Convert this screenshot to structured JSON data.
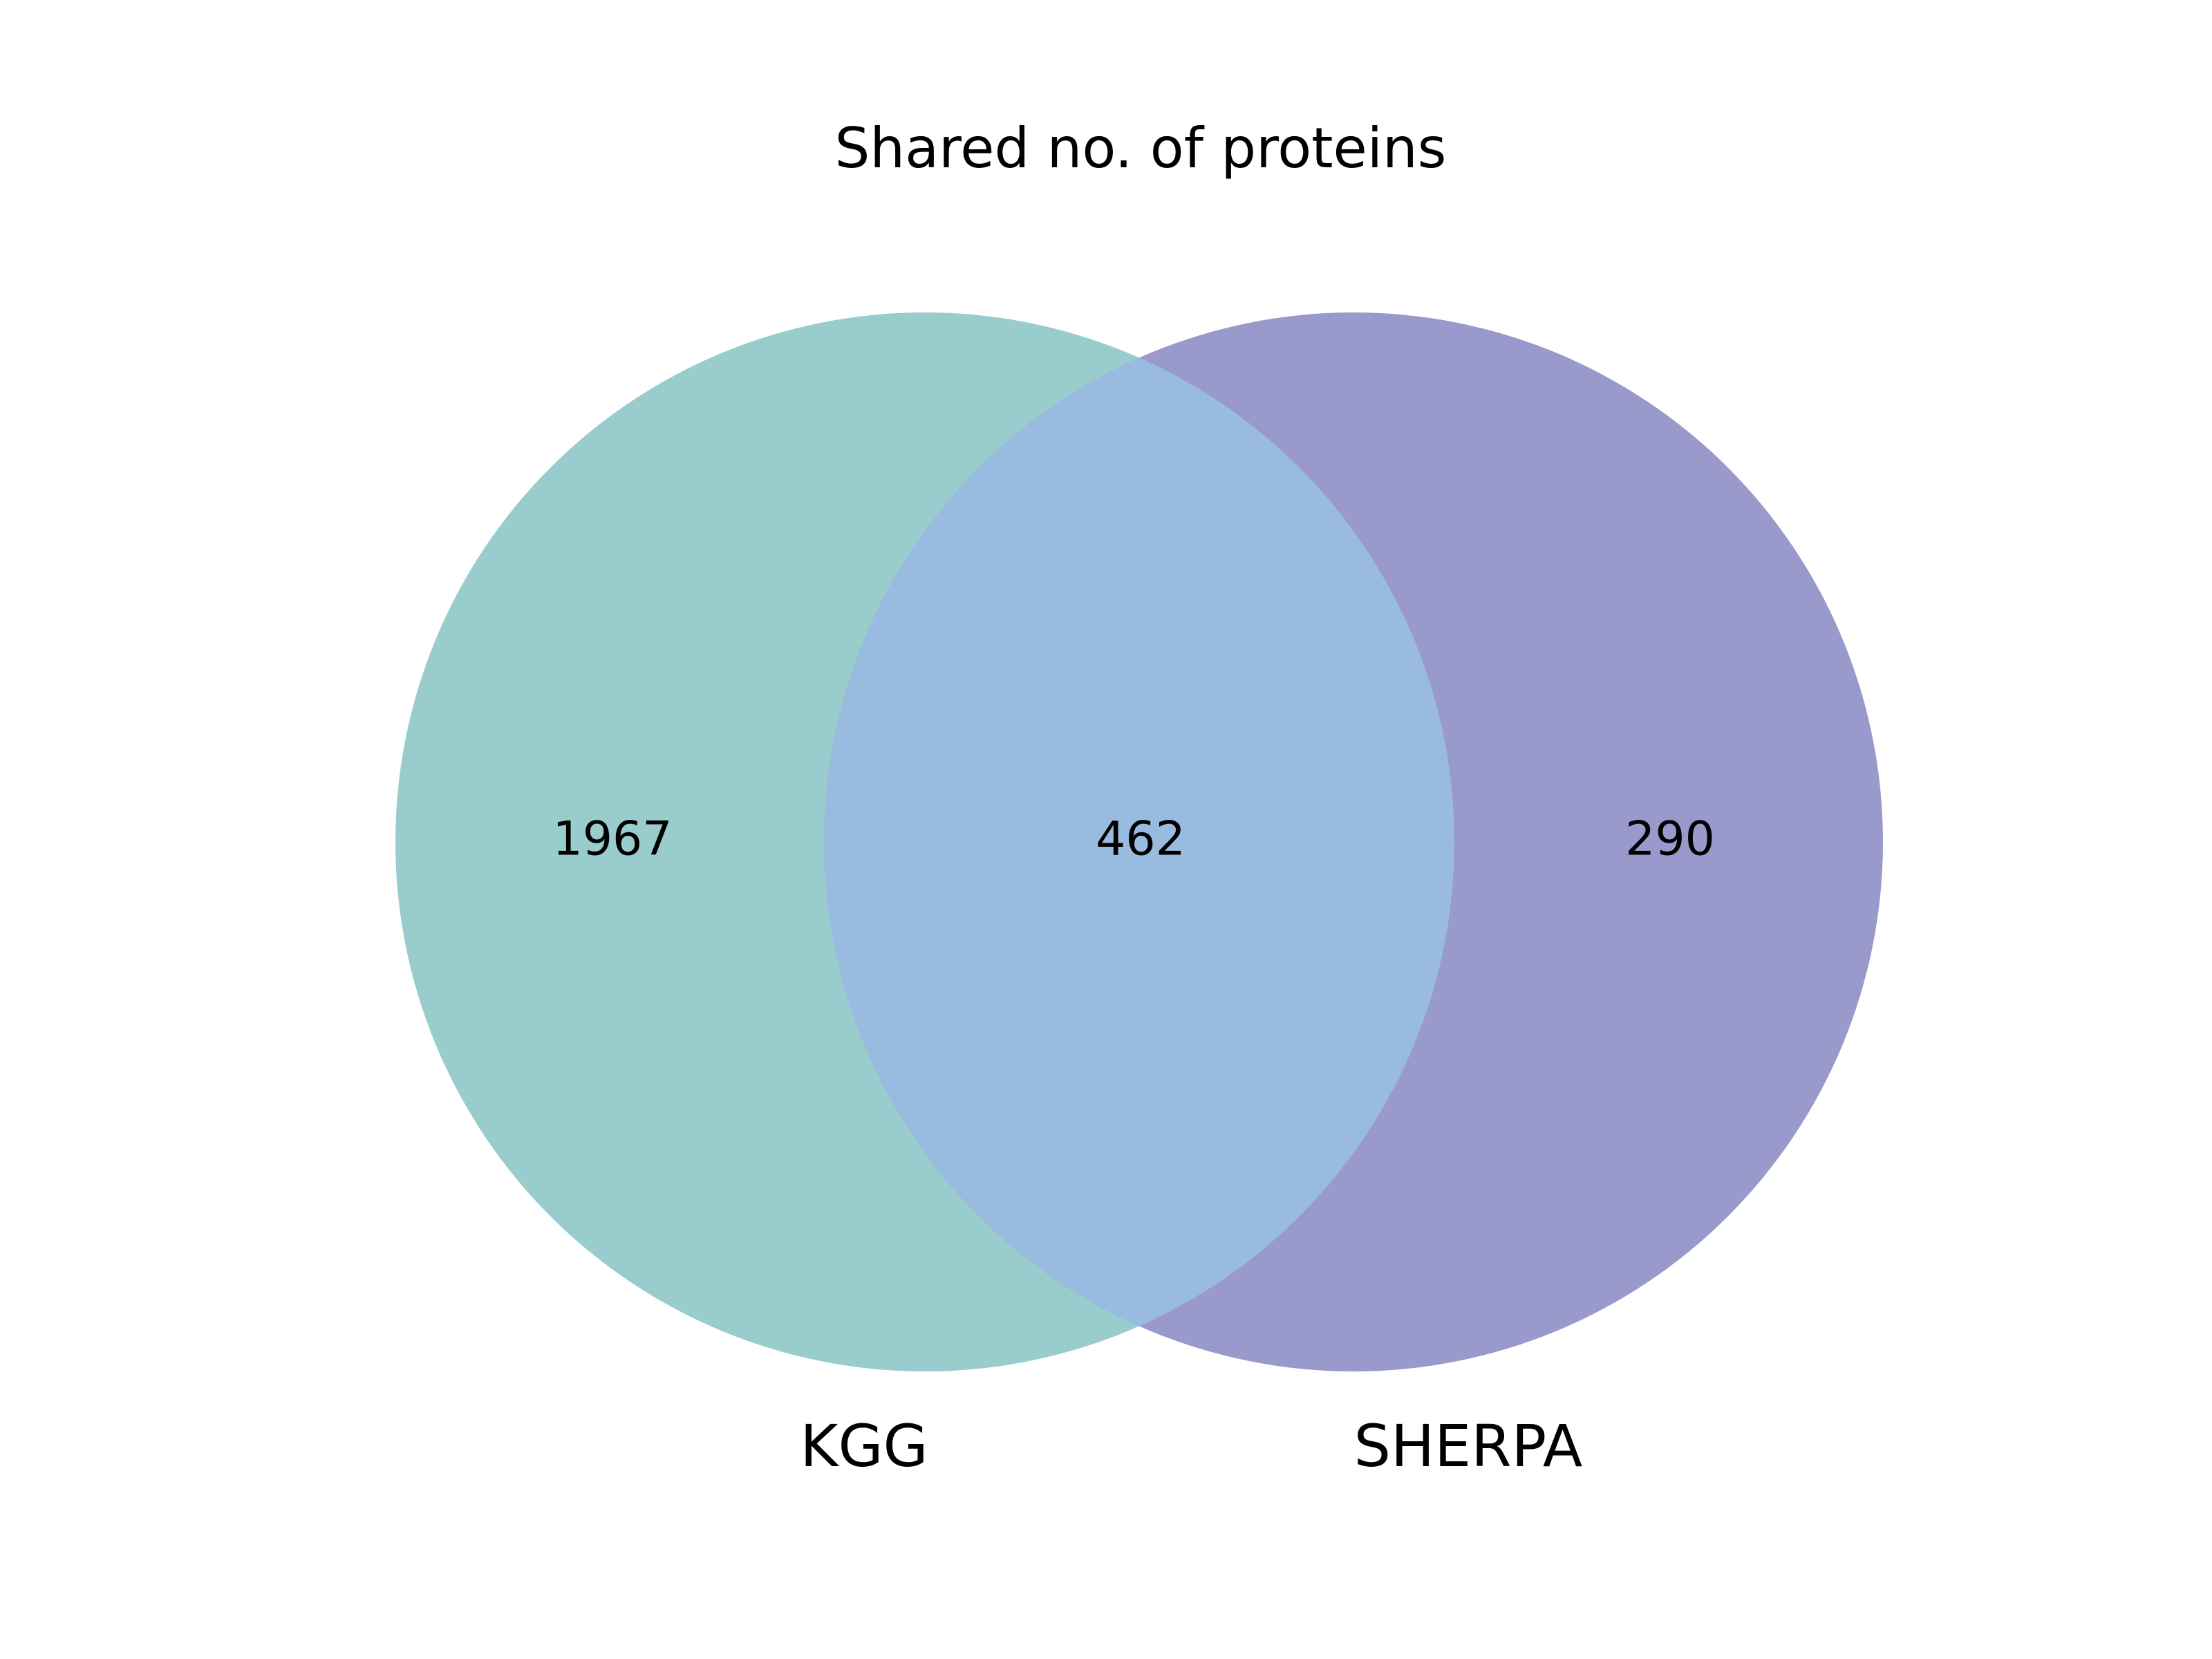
{
  "chart_data": {
    "type": "venn",
    "title": "Shared no. of proteins",
    "sets": [
      {
        "label": "KGG",
        "color": "#99cccc"
      },
      {
        "label": "SHERPA",
        "color": "#9999cc"
      }
    ],
    "overlap_color": "#99bbe0",
    "regions": {
      "only_first": "1967",
      "shared": "462",
      "only_second": "290"
    }
  }
}
